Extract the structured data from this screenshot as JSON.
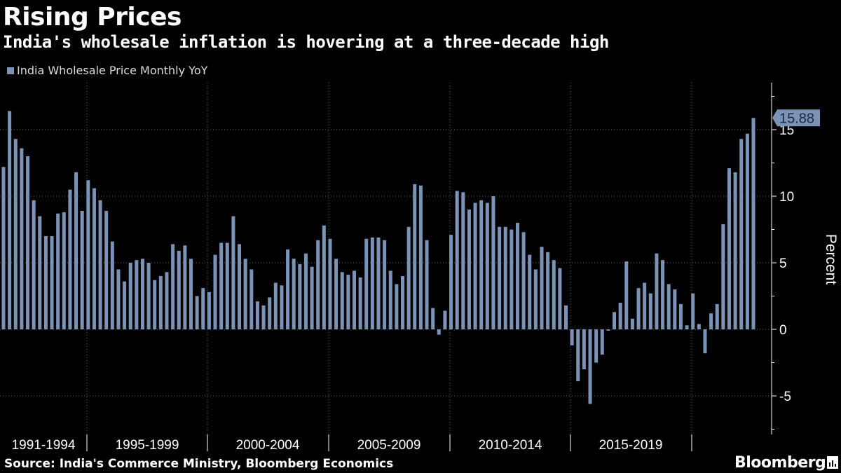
{
  "title": "Rising Prices",
  "subtitle": "India's wholesale inflation is hovering at a three-decade high",
  "legend_label": "India Wholesale Price Monthly YoY",
  "source": "Source: India's Commerce Ministry, Bloomberg Economics",
  "brand": "Bloomberg",
  "colors": {
    "bar": "#7b93b6",
    "background": "#000000",
    "grid": "#666666",
    "axis": "#ffffff"
  },
  "chart_data": {
    "type": "bar",
    "title": "Rising Prices",
    "subtitle": "India's wholesale inflation is hovering at a three-decade high",
    "xlabel": "",
    "ylabel": "Percent",
    "ylim": [
      -7.8,
      18
    ],
    "yticks": [
      -5,
      0,
      5,
      10,
      15
    ],
    "grid": true,
    "legend": "top-left",
    "series": [
      {
        "name": "India Wholesale Price Monthly YoY",
        "values": [
          12.2,
          16.4,
          14.3,
          13.6,
          13.0,
          9.7,
          8.5,
          7.0,
          7.0,
          8.7,
          8.8,
          10.5,
          11.8,
          8.9,
          11.2,
          10.6,
          9.7,
          8.9,
          6.6,
          4.5,
          3.6,
          5.0,
          5.2,
          5.3,
          5.0,
          3.7,
          4.0,
          4.3,
          6.4,
          5.9,
          6.3,
          5.3,
          2.5,
          3.1,
          2.8,
          5.6,
          6.5,
          6.5,
          8.5,
          6.4,
          5.3,
          4.5,
          2.1,
          1.8,
          2.4,
          3.5,
          3.3,
          6.0,
          5.3,
          4.9,
          5.7,
          4.7,
          6.7,
          7.8,
          6.8,
          5.3,
          4.3,
          4.1,
          4.4,
          3.9,
          6.8,
          6.9,
          6.9,
          6.7,
          4.4,
          3.4,
          4.0,
          7.7,
          10.9,
          10.8,
          6.7,
          1.6,
          -0.4,
          1.4,
          7.1,
          10.4,
          10.3,
          9.0,
          9.5,
          9.7,
          9.5,
          10.0,
          7.7,
          7.7,
          7.5,
          8.0,
          7.3,
          5.6,
          4.5,
          6.2,
          5.8,
          5.2,
          4.6,
          1.8,
          -1.2,
          -3.9,
          -3.0,
          -5.6,
          -2.5,
          -1.9,
          -0.1,
          1.3,
          2.0,
          5.1,
          0.8,
          3.1,
          3.5,
          2.7,
          5.7,
          5.2,
          3.4,
          3.0,
          1.9,
          0.3,
          2.7,
          0.4,
          -1.8,
          1.2,
          1.9,
          7.9,
          12.1,
          11.8,
          14.3,
          14.7,
          15.88
        ]
      }
    ],
    "x_period_labels": [
      "1991-1994",
      "1995-1999",
      "2000-2004",
      "2005-2009",
      "2010-2014",
      "2015-2019"
    ],
    "last_value_label": "15.88"
  }
}
